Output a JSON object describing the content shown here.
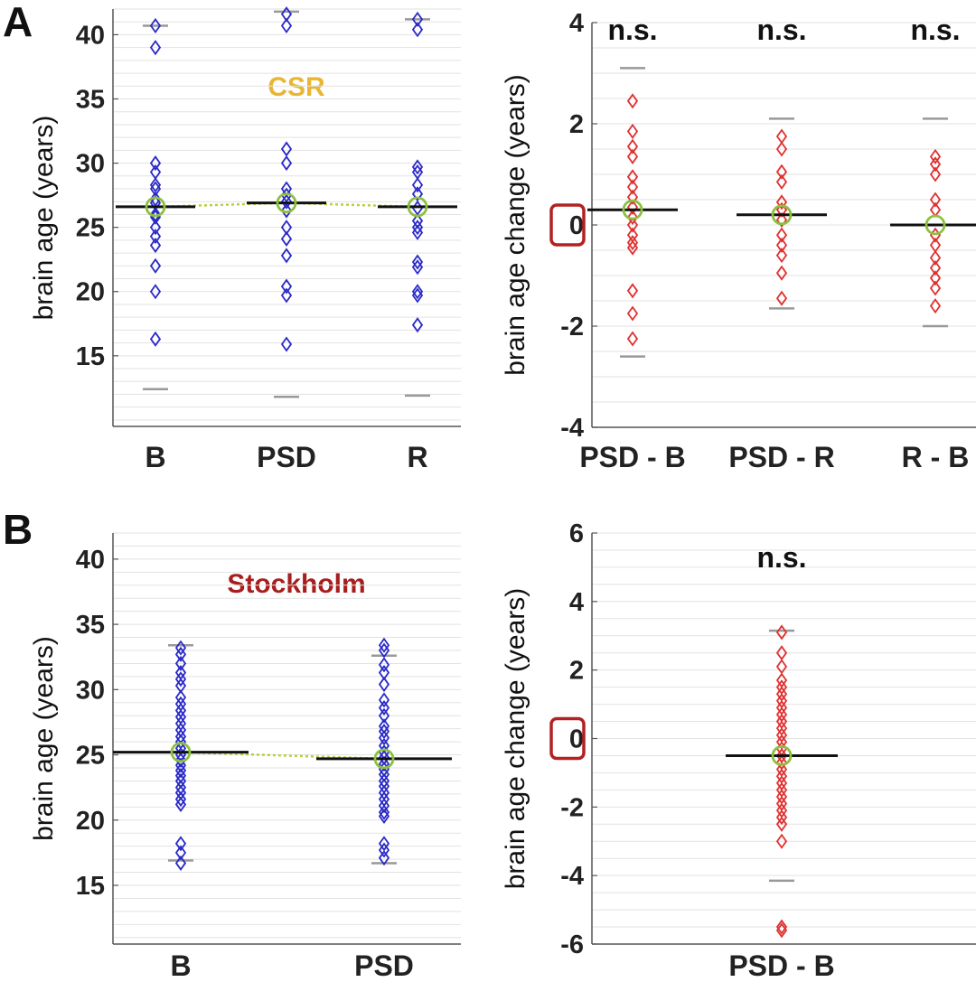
{
  "panels": {
    "A": {
      "label": "A",
      "cohort": "CSR",
      "cohort_color": "#e8b632"
    },
    "B": {
      "label": "B",
      "cohort": "Stockholm",
      "cohort_color": "#a81e1e"
    }
  },
  "colors": {
    "brain_age_marker": "#2929c8",
    "change_marker": "#e03030",
    "mean_circle": "#8cc040",
    "mean_line": "#111111",
    "range_line": "#999999",
    "connector": "#b8d040",
    "grid": "#e2e2e2",
    "zero_box": "#b22222"
  },
  "chart_data": [
    {
      "id": "A-left",
      "type": "scatter",
      "ylabel": "brain age (years)",
      "ylim": [
        9.5,
        42
      ],
      "yticks": [
        15,
        20,
        25,
        30,
        35,
        40
      ],
      "categories": [
        "B",
        "PSD",
        "R"
      ],
      "connect_means": true,
      "series": [
        {
          "name": "B",
          "mean": 26.6,
          "whisker": [
            12.4,
            40.7
          ],
          "values": [
            40.7,
            39.0,
            30.0,
            29.3,
            28.3,
            28.0,
            27.2,
            26.9,
            26.0,
            25.8,
            25.0,
            24.3,
            23.6,
            22.0,
            20.0,
            16.3
          ]
        },
        {
          "name": "PSD",
          "mean": 26.9,
          "whisker": [
            11.8,
            41.8
          ],
          "values": [
            41.6,
            40.7,
            31.1,
            30.0,
            28.0,
            27.5,
            27.0,
            26.3,
            25.0,
            24.1,
            22.8,
            20.4,
            19.7,
            15.9
          ]
        },
        {
          "name": "R",
          "mean": 26.6,
          "whisker": [
            11.9,
            41.2
          ],
          "values": [
            41.2,
            40.4,
            29.7,
            29.3,
            28.3,
            27.6,
            26.5,
            25.5,
            25.0,
            24.6,
            22.3,
            21.9,
            20.0,
            19.7,
            17.4
          ]
        }
      ]
    },
    {
      "id": "A-right",
      "type": "scatter",
      "ylabel": "brain age change (years)",
      "ylim": [
        -4,
        4
      ],
      "yticks": [
        -4,
        -2,
        0,
        2,
        4
      ],
      "categories": [
        "PSD - B",
        "PSD - R",
        "R - B"
      ],
      "annotations": [
        "n.s.",
        "n.s.",
        "n.s."
      ],
      "series": [
        {
          "name": "PSD - B",
          "mean": 0.3,
          "whisker": [
            -2.6,
            3.1
          ],
          "values": [
            2.45,
            1.85,
            1.55,
            1.35,
            0.95,
            0.75,
            0.55,
            0.35,
            0.15,
            0.0,
            -0.2,
            -0.35,
            -0.45,
            -1.3,
            -1.75,
            -2.25
          ]
        },
        {
          "name": "PSD - R",
          "mean": 0.2,
          "whisker": [
            -1.65,
            2.1
          ],
          "values": [
            1.75,
            1.5,
            1.05,
            0.85,
            0.45,
            0.3,
            0.1,
            -0.2,
            -0.4,
            -0.6,
            -0.95,
            -1.45
          ]
        },
        {
          "name": "R - B",
          "mean": 0.0,
          "whisker": [
            -2.0,
            2.1
          ],
          "values": [
            1.35,
            1.2,
            1.0,
            0.5,
            0.3,
            -0.2,
            -0.4,
            -0.65,
            -0.85,
            -1.05,
            -1.25,
            -1.6
          ]
        }
      ]
    },
    {
      "id": "B-left",
      "type": "scatter",
      "ylabel": "brain age (years)",
      "ylim": [
        10.5,
        42
      ],
      "yticks": [
        15,
        20,
        25,
        30,
        35,
        40
      ],
      "categories": [
        "B",
        "PSD"
      ],
      "connect_means": true,
      "series": [
        {
          "name": "B",
          "mean": 25.2,
          "whisker": [
            16.9,
            33.4
          ],
          "values": [
            33.2,
            32.7,
            32.0,
            31.3,
            30.8,
            30.3,
            29.4,
            28.9,
            28.4,
            27.9,
            27.4,
            26.9,
            26.4,
            26.0,
            25.5,
            25.0,
            24.6,
            24.2,
            23.8,
            23.4,
            23.0,
            22.5,
            22.1,
            21.6,
            21.2,
            18.2,
            17.5,
            16.7
          ]
        },
        {
          "name": "PSD",
          "mean": 24.7,
          "whisker": [
            16.7,
            32.6
          ],
          "values": [
            33.4,
            33.0,
            31.9,
            31.3,
            30.4,
            29.2,
            28.6,
            28.0,
            27.2,
            26.8,
            26.3,
            25.7,
            25.2,
            24.8,
            24.3,
            23.9,
            23.5,
            23.0,
            22.6,
            22.1,
            21.6,
            21.1,
            20.6,
            20.3,
            18.2,
            17.7,
            17.1
          ]
        }
      ]
    },
    {
      "id": "B-right",
      "type": "scatter",
      "ylabel": "brain age change (years)",
      "ylim": [
        -6,
        6
      ],
      "yticks": [
        -6,
        -4,
        -2,
        0,
        2,
        4,
        6
      ],
      "categories": [
        "PSD - B"
      ],
      "annotations": [
        "n.s."
      ],
      "series": [
        {
          "name": "PSD - B",
          "mean": -0.5,
          "whisker": [
            -4.15,
            3.15
          ],
          "values": [
            3.1,
            2.5,
            2.1,
            1.7,
            1.5,
            1.3,
            1.1,
            0.9,
            0.7,
            0.5,
            0.3,
            0.1,
            -0.1,
            -0.3,
            -0.5,
            -0.7,
            -0.9,
            -1.1,
            -1.3,
            -1.5,
            -1.7,
            -1.9,
            -2.1,
            -2.3,
            -2.5,
            -3.0,
            -5.5,
            -5.6
          ]
        }
      ]
    }
  ]
}
